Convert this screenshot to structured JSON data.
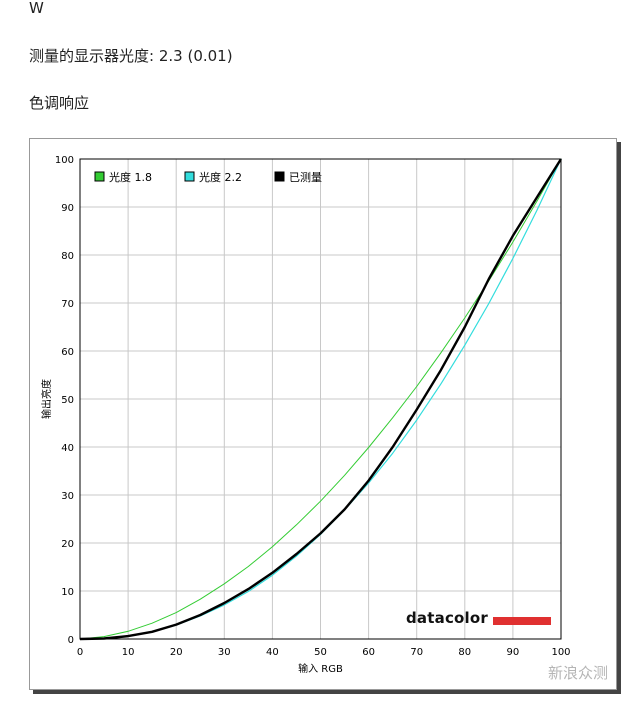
{
  "headings": {
    "w": "W",
    "gamma_label": "测量的显示器光度:",
    "gamma_value": "2.3 (0.01)",
    "tone_response": "色调响应"
  },
  "brand": "datacolor",
  "watermark": "新浪众测",
  "chart_data": {
    "type": "line",
    "title": "",
    "xlabel": "输入 RGB",
    "ylabel": "输出亮度",
    "xlim": [
      0,
      100
    ],
    "ylim": [
      0,
      100
    ],
    "xticks": [
      0,
      10,
      20,
      30,
      40,
      50,
      60,
      70,
      80,
      90,
      100
    ],
    "yticks": [
      0,
      10,
      20,
      30,
      40,
      50,
      60,
      70,
      80,
      90,
      100
    ],
    "grid": true,
    "legend": "top-left",
    "x": [
      0,
      5,
      10,
      15,
      20,
      25,
      30,
      35,
      40,
      45,
      50,
      55,
      60,
      65,
      70,
      75,
      80,
      85,
      90,
      95,
      100
    ],
    "series": [
      {
        "name": "光度 1.8",
        "color": "#33cc33",
        "gamma": 1.8,
        "values": [
          0,
          0.5,
          1.6,
          3.3,
          5.5,
          8.3,
          11.5,
          15.1,
          19.2,
          23.8,
          28.7,
          34.1,
          39.9,
          46.1,
          52.6,
          59.6,
          66.9,
          74.6,
          82.7,
          91.2,
          100
        ]
      },
      {
        "name": "光度 2.2",
        "color": "#33dddd",
        "gamma": 2.2,
        "values": [
          0,
          0.1,
          0.6,
          1.5,
          2.9,
          4.8,
          7.1,
          9.9,
          13.3,
          17.3,
          21.8,
          26.9,
          32.5,
          38.7,
          45.6,
          53.1,
          61.2,
          69.9,
          79.3,
          89.3,
          100
        ]
      },
      {
        "name": "已测量",
        "color": "#000000",
        "gamma": 2.3,
        "values": [
          0,
          0.1,
          0.6,
          1.5,
          3.0,
          5.0,
          7.5,
          10.4,
          13.8,
          17.7,
          22.0,
          27.0,
          33.0,
          40.0,
          47.8,
          56.0,
          65.0,
          75.0,
          84.0,
          92.0,
          100
        ]
      }
    ]
  }
}
